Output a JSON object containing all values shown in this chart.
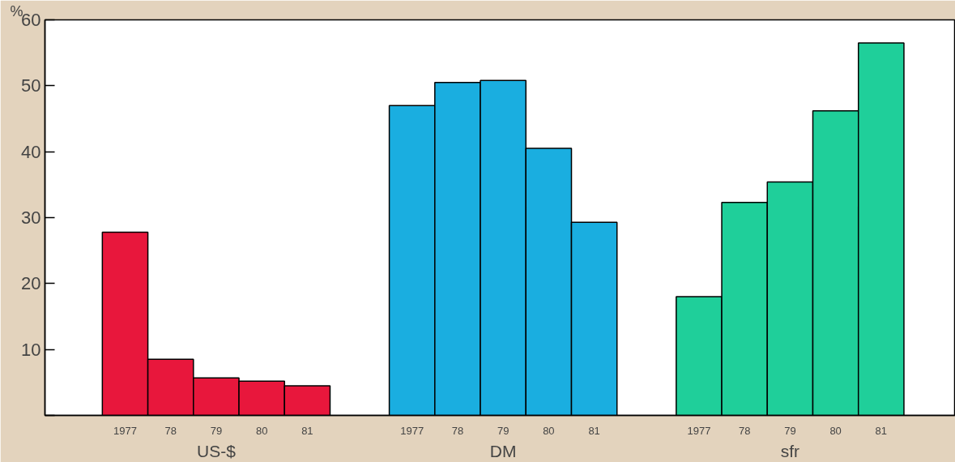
{
  "chart_data": {
    "type": "bar",
    "ylabel": "%",
    "categories": [
      "US-$",
      "DM",
      "sfr"
    ],
    "series": [
      {
        "name": "1977",
        "colors": [
          "#e8173c",
          "#1aaee0",
          "#1fcf9a"
        ],
        "values": [
          27.8,
          47,
          18
        ]
      },
      {
        "name": "78",
        "colors": [
          "#e8173c",
          "#1aaee0",
          "#1fcf9a"
        ],
        "values": [
          8.5,
          50.5,
          32.3
        ]
      },
      {
        "name": "79",
        "colors": [
          "#e8173c",
          "#1aaee0",
          "#1fcf9a"
        ],
        "values": [
          5.7,
          50.8,
          35.4
        ]
      },
      {
        "name": "80",
        "colors": [
          "#e8173c",
          "#1aaee0",
          "#1fcf9a"
        ],
        "values": [
          5.2,
          40.5,
          46.2
        ]
      },
      {
        "name": "81",
        "colors": [
          "#e8173c",
          "#1aaee0",
          "#1fcf9a"
        ],
        "values": [
          4.5,
          29.3,
          56.5
        ]
      }
    ],
    "ylim": [
      0,
      60
    ],
    "yticks": [
      {
        "value": 0,
        "label": null
      },
      10,
      20,
      30,
      40,
      50,
      60
    ],
    "grid": false
  }
}
